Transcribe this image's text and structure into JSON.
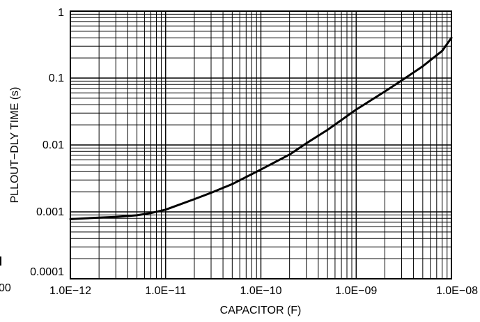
{
  "chart_data": {
    "type": "line",
    "x_scale": "log",
    "y_scale": "log",
    "xlabel": "CAPACITOR (F)",
    "ylabel": "PLLOUT−DLY TIME (s)",
    "xlim": [
      1e-12,
      1e-08
    ],
    "ylim": [
      0.0001,
      1
    ],
    "x_tick_values": [
      1e-12,
      1e-11,
      1e-10,
      1e-09,
      1e-08
    ],
    "x_tick_labels": [
      "1.0E−12",
      "1.0E−11",
      "1.0E−10",
      "1.0E−09",
      "1.0E−08"
    ],
    "y_tick_values": [
      1,
      0.1,
      0.01,
      0.001,
      0.0001
    ],
    "y_tick_labels": [
      "1",
      "0.1",
      "0.01",
      "0.001",
      "0.0001"
    ],
    "grid": true,
    "series": [
      {
        "color": "#000000",
        "x": [
          1e-12,
          2e-12,
          3e-12,
          5e-12,
          7e-12,
          1e-11,
          2e-11,
          3e-11,
          5e-11,
          1e-10,
          2e-10,
          3e-10,
          5e-10,
          1e-09,
          2e-09,
          3e-09,
          5e-09,
          8e-09,
          1e-08
        ],
        "y": [
          0.00078,
          0.00082,
          0.00084,
          0.00089,
          0.00096,
          0.00108,
          0.00155,
          0.00193,
          0.0026,
          0.0043,
          0.0072,
          0.0106,
          0.0168,
          0.0338,
          0.063,
          0.092,
          0.15,
          0.255,
          0.4
        ]
      }
    ]
  },
  "left_edge_fragment": "00"
}
